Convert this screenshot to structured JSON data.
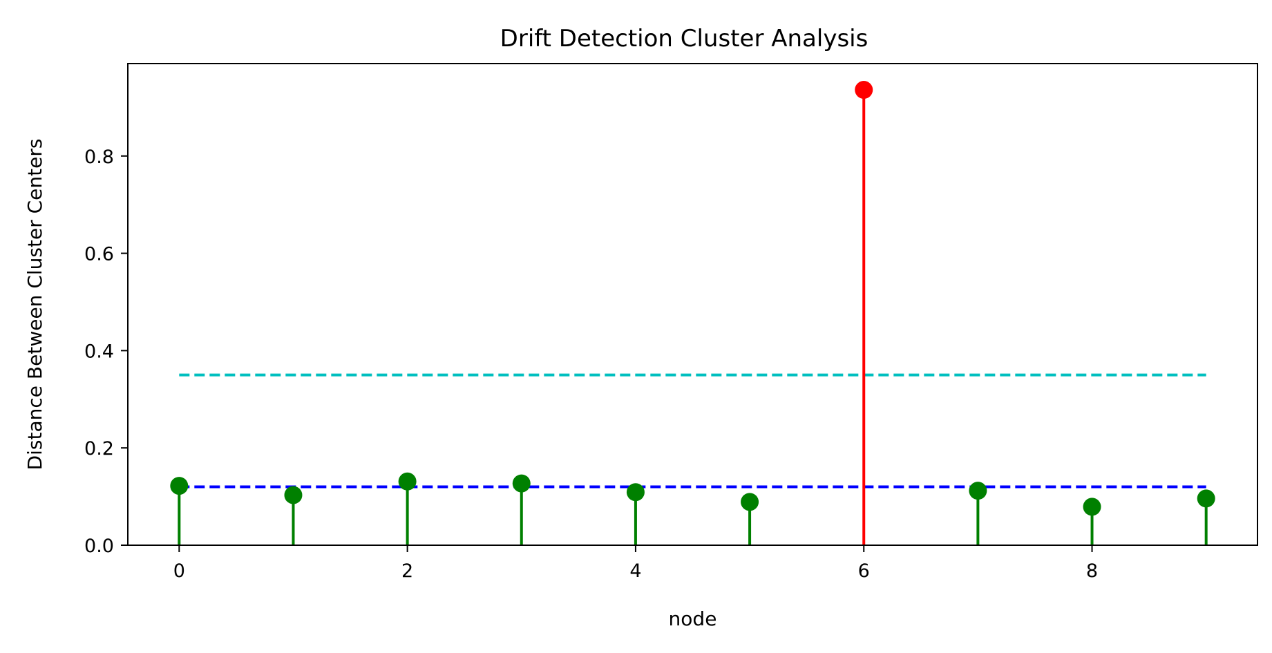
{
  "chart_data": {
    "type": "stem",
    "title": "Drift Detection Cluster Analysis",
    "xlabel": "node",
    "ylabel": "Distance Between Cluster Centers",
    "xlim": [
      -0.45,
      9.45
    ],
    "ylim": [
      0.0,
      0.99
    ],
    "xticks": [
      0,
      2,
      4,
      6,
      8
    ],
    "yticks": [
      0.0,
      0.2,
      0.4,
      0.6,
      0.8
    ],
    "xtick_labels": [
      "0",
      "2",
      "4",
      "6",
      "8"
    ],
    "ytick_labels": [
      "0.0",
      "0.2",
      "0.4",
      "0.6",
      "0.8"
    ],
    "grid": false,
    "series": [
      {
        "x": [
          0,
          1,
          2,
          3,
          4,
          5,
          6,
          7,
          8,
          9
        ],
        "values": [
          0.122,
          0.103,
          0.131,
          0.127,
          0.109,
          0.089,
          0.936,
          0.112,
          0.079,
          0.096
        ],
        "colors": [
          "#008000",
          "#008000",
          "#008000",
          "#008000",
          "#008000",
          "#008000",
          "#ff0000",
          "#008000",
          "#008000",
          "#008000"
        ]
      }
    ],
    "reference_lines": [
      {
        "y": 0.35,
        "x_start": 0,
        "x_end": 9,
        "style": "dashed",
        "color": "#00bfbf"
      },
      {
        "y": 0.12,
        "x_start": 0,
        "x_end": 9,
        "style": "dashed",
        "color": "#0000ff"
      }
    ]
  }
}
